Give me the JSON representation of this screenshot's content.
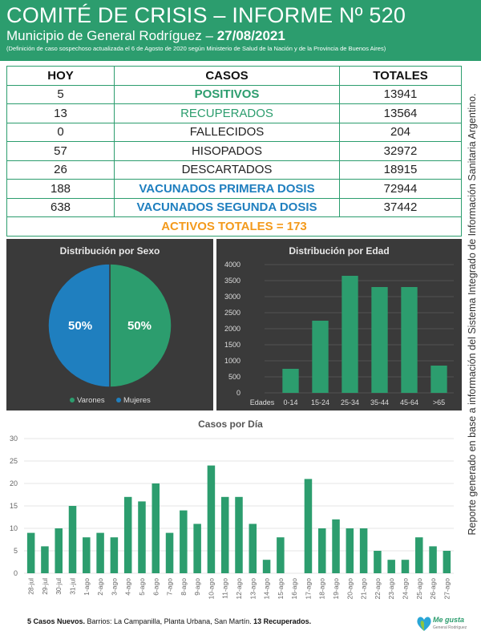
{
  "header": {
    "title": "COMITÉ DE CRISIS – INFORME Nº 520",
    "subtitle_prefix": "Municipio de General Rodríguez –",
    "date": "27/08/2021",
    "note": "(Definición de caso sospechoso actualizada el 6 de Agosto de 2020 según Ministerio de Salud de la Nación y de la Provincia de Buenos Aires)"
  },
  "table": {
    "headers": [
      "HOY",
      "CASOS",
      "TOTALES"
    ],
    "rows": [
      {
        "hoy": "5",
        "caso": "POSITIVOS",
        "total": "13941"
      },
      {
        "hoy": "13",
        "caso": "RECUPERADOS",
        "total": "13564"
      },
      {
        "hoy": "0",
        "caso": "FALLECIDOS",
        "total": "204"
      },
      {
        "hoy": "57",
        "caso": "HISOPADOS",
        "total": "32972"
      },
      {
        "hoy": "26",
        "caso": "DESCARTADOS",
        "total": "18915"
      },
      {
        "hoy": "188",
        "caso": "VACUNADOS PRIMERA DOSIS",
        "total": "72944"
      },
      {
        "hoy": "638",
        "caso": "VACUNADOS SEGUNDA DOSIS",
        "total": "37442"
      }
    ],
    "activos": "ACTIVOS TOTALES = 173"
  },
  "side_note": "Reporte generado en base a información del Sistema Integrado de Información Sanitaria Argentino.",
  "colors": {
    "green": "#2c9d6e",
    "blue": "#1f7fbf",
    "orange": "#f39a1c",
    "panel": "#3a3a3a"
  },
  "chart_data": [
    {
      "type": "pie",
      "title": "Distribución por Sexo",
      "categories": [
        "Varones",
        "Mujeres"
      ],
      "values": [
        50,
        50
      ],
      "labels": [
        "50%",
        "50%"
      ],
      "colors": [
        "#2c9d6e",
        "#1f7fbf"
      ],
      "legend": "bottom"
    },
    {
      "type": "bar",
      "title": "Distribución por Edad",
      "xlabel": "Edades",
      "categories": [
        "0-14",
        "15-24",
        "25-34",
        "35-44",
        "45-64",
        ">65"
      ],
      "values": [
        750,
        2250,
        3650,
        3300,
        3300,
        850
      ],
      "ylim": [
        0,
        4000
      ],
      "yticks": [
        0,
        500,
        1000,
        1500,
        2000,
        2500,
        3000,
        3500,
        4000
      ],
      "grid": true
    },
    {
      "type": "bar",
      "title": "Casos por Día",
      "categories": [
        "28-jul",
        "29-jul",
        "30-jul",
        "31-jul",
        "1-ago",
        "2-ago",
        "3-ago",
        "4-ago",
        "5-ago",
        "6-ago",
        "7-ago",
        "8-ago",
        "9-ago",
        "10-ago",
        "11-ago",
        "12-ago",
        "13-ago",
        "14-ago",
        "15-ago",
        "16-ago",
        "17-ago",
        "18-ago",
        "19-ago",
        "20-ago",
        "21-ago",
        "22-ago",
        "23-ago",
        "24-ago",
        "25-ago",
        "26-ago",
        "27-ago"
      ],
      "values": [
        9,
        6,
        10,
        15,
        8,
        9,
        8,
        17,
        16,
        20,
        9,
        14,
        11,
        24,
        17,
        17,
        11,
        3,
        8,
        0,
        21,
        10,
        12,
        10,
        10,
        5,
        3,
        3,
        8,
        6,
        5
      ],
      "ylim": [
        0,
        30
      ],
      "yticks": [
        0,
        5,
        10,
        15,
        20,
        25,
        30
      ],
      "grid": true
    }
  ],
  "footer": {
    "bold1": "5 Casos Nuevos.",
    "text": " Barrios: La Campanilla, Planta Urbana, San Martín. ",
    "bold2": "13 Recuperados."
  },
  "logo": {
    "text": "Me gusta",
    "sub": "General Rodríguez"
  }
}
